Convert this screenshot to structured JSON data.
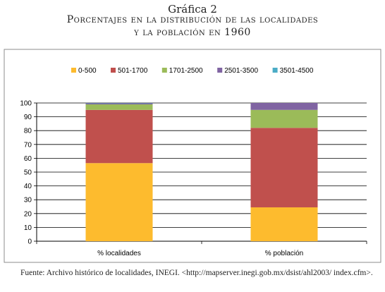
{
  "heading": {
    "line1": "Gráfica 2",
    "line2": "Porcentajes en la distribución de las localidades",
    "line3": "y la población en 1960"
  },
  "source_note": "Fuente: Archivo histórico de localidades, INEGI. <http://mapserver.inegi.gob.mx/dsist/ahl2003/ index.cfm>.",
  "chart_data": {
    "type": "bar",
    "stacked": true,
    "categories": [
      "% localidades",
      "% población"
    ],
    "series": [
      {
        "name": "0-500",
        "color": "#FDBB2E",
        "values": [
          56.5,
          24.5
        ]
      },
      {
        "name": "501-1700",
        "color": "#C0504D",
        "values": [
          38.5,
          57.5
        ]
      },
      {
        "name": "1701-2500",
        "color": "#9BBB59",
        "values": [
          4.0,
          13.0
        ]
      },
      {
        "name": "2501-3500",
        "color": "#8064A2",
        "values": [
          0.8,
          5.0
        ]
      },
      {
        "name": "3501-4500",
        "color": "#4BACC6",
        "values": [
          0.2,
          0.0
        ]
      }
    ],
    "yticks": [
      0,
      10,
      20,
      30,
      40,
      50,
      60,
      70,
      80,
      90,
      100
    ],
    "ylim": [
      0,
      100
    ],
    "grid": true,
    "legend": "top"
  }
}
